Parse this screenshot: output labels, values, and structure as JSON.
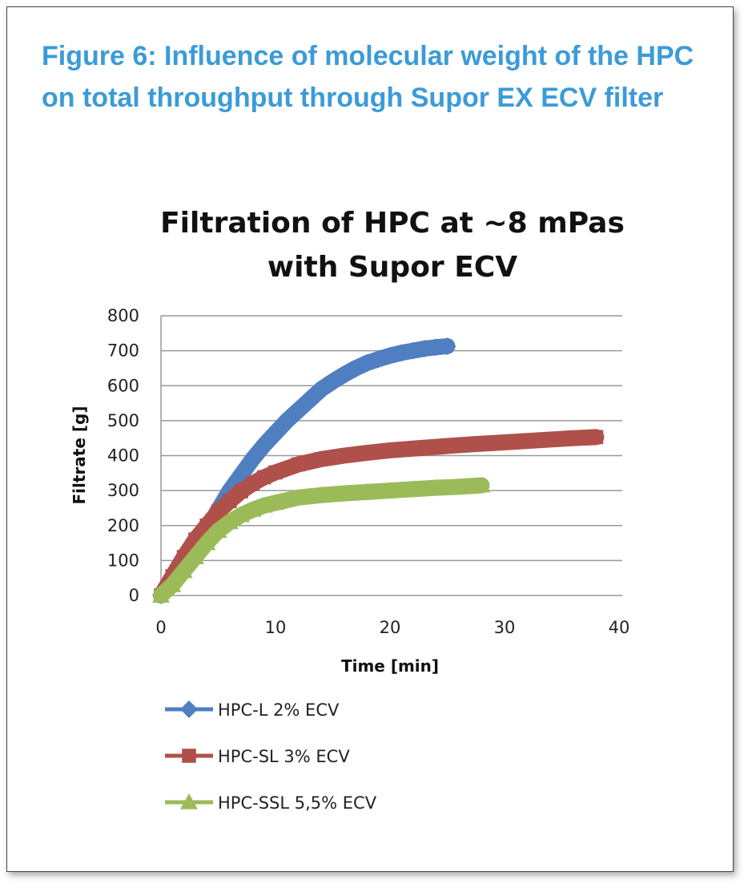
{
  "figure_caption": "Figure 6: Influence of molecular weight of the HPC on total throughput through Supor EX ECV filter",
  "chart_data": {
    "type": "line",
    "title_lines": [
      "Filtration of HPC at ~8 mPas",
      "with Supor ECV"
    ],
    "xlabel": "Time [min]",
    "ylabel": "Filtrate [g]",
    "xlim": [
      0,
      40
    ],
    "ylim": [
      0,
      800
    ],
    "xticks": [
      "0",
      "10",
      "20",
      "30",
      "40"
    ],
    "yticks": [
      "0",
      "100",
      "200",
      "300",
      "400",
      "500",
      "600",
      "700",
      "800"
    ],
    "grid": "horizontal",
    "legend": "bottom",
    "series": [
      {
        "name": "HPC-L 2% ECV",
        "color": "#4f7ec1",
        "marker": "diamond",
        "x": [
          0,
          1,
          2,
          3,
          4,
          5,
          6,
          7,
          8,
          9,
          10,
          11,
          12,
          13,
          14,
          15,
          16,
          17,
          18,
          19,
          20,
          21,
          22,
          23,
          24,
          25
        ],
        "y": [
          0,
          45,
          90,
          140,
          190,
          245,
          300,
          345,
          390,
          430,
          465,
          500,
          530,
          560,
          590,
          612,
          632,
          650,
          665,
          676,
          686,
          694,
          700,
          706,
          710,
          713
        ]
      },
      {
        "name": "HPC-SL 3% ECV",
        "color": "#b0504a",
        "marker": "square",
        "x": [
          0,
          1,
          2,
          3,
          4,
          5,
          6,
          7,
          8,
          9,
          10,
          12,
          14,
          16,
          18,
          20,
          22,
          24,
          26,
          28,
          30,
          32,
          34,
          36,
          38
        ],
        "y": [
          0,
          55,
          110,
          160,
          200,
          240,
          270,
          298,
          320,
          338,
          352,
          375,
          390,
          400,
          408,
          415,
          420,
          425,
          430,
          434,
          438,
          442,
          446,
          450,
          453
        ]
      },
      {
        "name": "HPC-SSL 5,5% ECV",
        "color": "#9bbb59",
        "marker": "triangle",
        "x": [
          0,
          1,
          2,
          3,
          4,
          5,
          6,
          7,
          8,
          9,
          10,
          12,
          14,
          16,
          18,
          20,
          22,
          24,
          26,
          28
        ],
        "y": [
          0,
          30,
          70,
          110,
          150,
          185,
          210,
          230,
          245,
          257,
          265,
          280,
          287,
          292,
          296,
          300,
          304,
          308,
          311,
          315
        ]
      }
    ]
  }
}
